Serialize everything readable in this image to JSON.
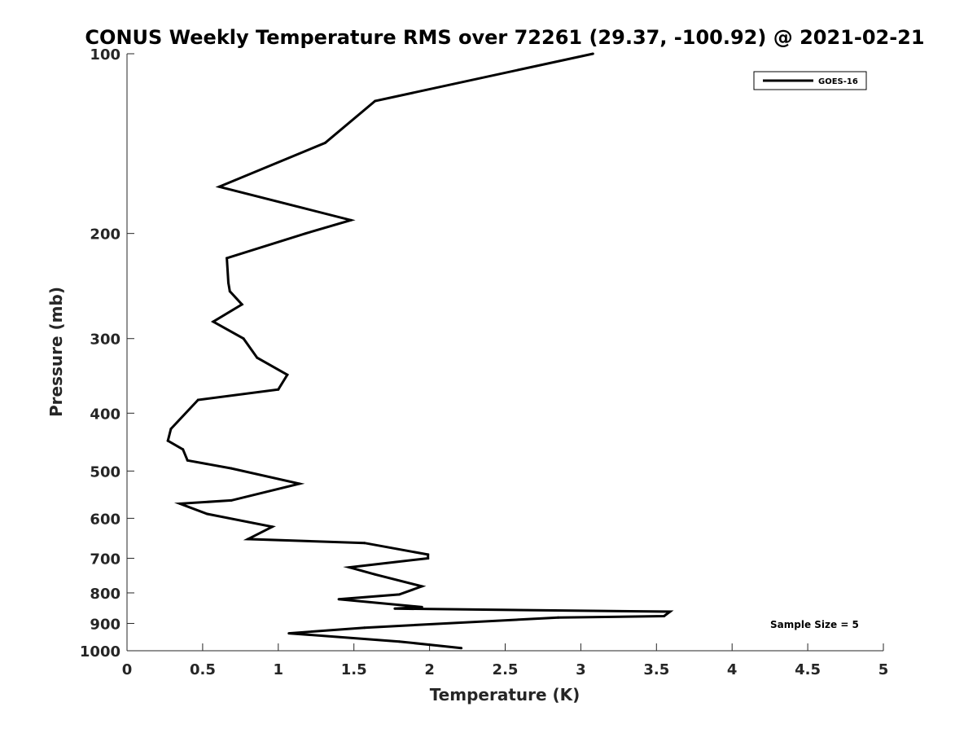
{
  "chart_data": {
    "type": "line",
    "title": "CONUS Weekly Temperature RMS over 72261 (29.37, -100.92) @ 2021-02-21",
    "xlabel": "Temperature (K)",
    "ylabel": "Pressure (mb)",
    "xlim": [
      0,
      5
    ],
    "ylim": [
      100,
      1000
    ],
    "y_scale": "log",
    "y_direction": "reversed",
    "x_ticks": [
      0,
      0.5,
      1,
      1.5,
      2,
      2.5,
      3,
      3.5,
      4,
      4.5,
      5
    ],
    "x_tick_labels": [
      "0",
      "0.5",
      "1",
      "1.5",
      "2",
      "2.5",
      "3",
      "3.5",
      "4",
      "4.5",
      "5"
    ],
    "y_ticks": [
      100,
      200,
      300,
      400,
      500,
      600,
      700,
      800,
      900,
      1000
    ],
    "y_tick_labels": [
      "100",
      "200",
      "300",
      "400",
      "500",
      "600",
      "700",
      "800",
      "900",
      "1000"
    ],
    "grid": false,
    "legend_position": "top-right",
    "series": [
      {
        "name": "GOES-16",
        "color": "#000000",
        "x": [
          3.08,
          1.64,
          1.31,
          0.61,
          1.48,
          1.18,
          0.66,
          0.67,
          0.68,
          0.76,
          0.57,
          0.77,
          0.86,
          1.06,
          1.0,
          0.47,
          0.29,
          0.27,
          0.37,
          0.4,
          0.69,
          1.14,
          0.69,
          0.35,
          0.53,
          0.96,
          0.8,
          1.57,
          1.99,
          1.99,
          1.47,
          1.64,
          1.95,
          1.8,
          1.4,
          1.95,
          1.77,
          3.59,
          3.55,
          2.85,
          1.57,
          1.07,
          1.8,
          2.21
        ],
        "y": [
          100,
          120,
          141,
          167,
          190,
          200,
          220,
          242,
          250,
          263,
          281,
          300,
          323,
          345,
          365,
          380,
          425,
          445,
          460,
          480,
          495,
          525,
          560,
          567,
          590,
          620,
          650,
          660,
          690,
          700,
          725,
          745,
          780,
          805,
          820,
          845,
          850,
          860,
          875,
          880,
          915,
          935,
          965,
          990
        ]
      }
    ],
    "annotations": [
      "Sample Size = 5"
    ]
  }
}
